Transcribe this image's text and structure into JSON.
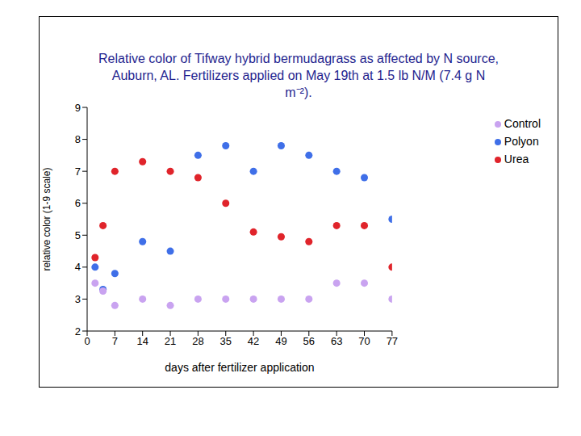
{
  "chart_data": {
    "type": "scatter",
    "title": "Relative color of Tifway hybrid bermudagrass as affected by N source, Auburn, AL. Fertilizers applied on May 19th at 1.5 lb N/M (7.4 g N m⁻²).",
    "x_label": "days after fertilizer application",
    "y_label": "relative color (1-9 scale)",
    "x": [
      2,
      4,
      7,
      14,
      21,
      28,
      35,
      42,
      49,
      56,
      63,
      70,
      77
    ],
    "series": [
      {
        "name": "Urea",
        "color": "#e0242b",
        "values": [
          4.3,
          5.3,
          7.0,
          7.3,
          7.0,
          6.8,
          6.0,
          5.1,
          4.95,
          4.8,
          5.3,
          5.3,
          4.0
        ]
      },
      {
        "name": "Polyon",
        "color": "#3f6fe8",
        "values": [
          4.0,
          3.3,
          3.8,
          4.8,
          4.5,
          7.5,
          7.8,
          7.0,
          7.8,
          7.5,
          7.0,
          6.8,
          5.5
        ]
      },
      {
        "name": "Control",
        "color": "#c9a3f0",
        "values": [
          3.5,
          3.25,
          2.8,
          3.0,
          2.8,
          3.0,
          3.0,
          3.0,
          3.0,
          3.0,
          3.5,
          3.5,
          3.0
        ]
      }
    ],
    "xlim": [
      0,
      77
    ],
    "xticks": [
      0,
      7,
      14,
      21,
      28,
      35,
      42,
      49,
      56,
      63,
      70,
      77
    ],
    "ylim": [
      2,
      9
    ],
    "yticks": [
      2,
      3,
      4,
      5,
      6,
      7,
      8,
      9
    ],
    "grid": false,
    "legend": "upper right",
    "marker": "circle"
  }
}
